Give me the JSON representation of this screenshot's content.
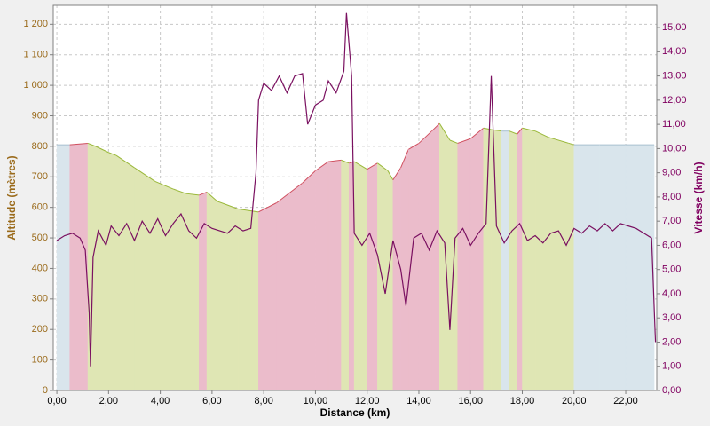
{
  "chart_data": {
    "type": "altitude-speed",
    "xlabel": "Distance (km)",
    "ylabel": "Altitude (mètres)",
    "y2label": "Vitesse (km/h)",
    "xlim": [
      -0.14,
      23.2
    ],
    "xticks": [
      {
        "value": 0,
        "label": "0,00"
      },
      {
        "value": 2,
        "label": "2,00"
      },
      {
        "value": 4,
        "label": "4,00"
      },
      {
        "value": 6,
        "label": "6,00"
      },
      {
        "value": 8,
        "label": "8,00"
      },
      {
        "value": 10,
        "label": "10,00"
      },
      {
        "value": 12,
        "label": "12,00"
      },
      {
        "value": 14,
        "label": "14,00"
      },
      {
        "value": 16,
        "label": "16,00"
      },
      {
        "value": 18,
        "label": "18,00"
      },
      {
        "value": 20,
        "label": "20,00"
      },
      {
        "value": 22,
        "label": "22,00"
      }
    ],
    "ylim": [
      0,
      1262
    ],
    "yticks": [
      0,
      100,
      200,
      300,
      400,
      500,
      600,
      700,
      800,
      900,
      {
        "value": 1000,
        "label": "1 000"
      },
      {
        "value": 1100,
        "label": "1 100"
      },
      {
        "value": 1200,
        "label": "1 200"
      }
    ],
    "y2lim": [
      0,
      15.92
    ],
    "y2ticks": [
      {
        "value": 0,
        "label": "0,00"
      },
      {
        "value": 1,
        "label": "1,00"
      },
      {
        "value": 2,
        "label": "2,00"
      },
      {
        "value": 3,
        "label": "3,00"
      },
      {
        "value": 4,
        "label": "4,00"
      },
      {
        "value": 5,
        "label": "5,00"
      },
      {
        "value": 6,
        "label": "6,00"
      },
      {
        "value": 7,
        "label": "7,00"
      },
      {
        "value": 8,
        "label": "8,00"
      },
      {
        "value": 9,
        "label": "9,00"
      },
      {
        "value": 10,
        "label": "10,00"
      },
      {
        "value": 11,
        "label": "11,00"
      },
      {
        "value": 12,
        "label": "12,00"
      },
      {
        "value": 13,
        "label": "13,00"
      },
      {
        "value": 14,
        "label": "14,00"
      },
      {
        "value": 15,
        "label": "15,00"
      }
    ],
    "grid": true,
    "slope_colors": {
      "up": "#ebbccb",
      "down": "#dfe6b4",
      "flat": "#d9e5ec",
      "up_line": "#d05060",
      "down_line": "#9ab83a",
      "flat_line": "#a8c0d0"
    },
    "series": [
      {
        "kind": "area",
        "axis": "y",
        "x": [
          0,
          0.5,
          1.2,
          1.5,
          2,
          2.3,
          3,
          3.8,
          4.5,
          5,
          5.5,
          5.8,
          6.2,
          7,
          7.8,
          8.5,
          9.5,
          10,
          10.5,
          11,
          11.3,
          11.5,
          12,
          12.4,
          12.8,
          13,
          13.3,
          13.6,
          14,
          14.5,
          14.8,
          15.2,
          15.5,
          16,
          16.5,
          16.8,
          17.2,
          17.5,
          17.8,
          18,
          18.5,
          19,
          19.8,
          20,
          21,
          22,
          23.1
        ],
        "values": [
          805,
          805,
          810,
          800,
          780,
          770,
          730,
          685,
          660,
          645,
          640,
          650,
          620,
          595,
          585,
          615,
          680,
          720,
          750,
          755,
          745,
          750,
          725,
          745,
          720,
          690,
          730,
          790,
          810,
          850,
          875,
          820,
          810,
          825,
          860,
          855,
          850,
          850,
          840,
          860,
          850,
          830,
          810,
          805,
          805,
          805,
          805
        ]
      },
      {
        "kind": "line",
        "axis": "y2",
        "color": "#7a1060",
        "x": [
          0,
          0.3,
          0.6,
          0.9,
          1.1,
          1.25,
          1.3,
          1.4,
          1.6,
          1.9,
          2.1,
          2.4,
          2.7,
          3.0,
          3.3,
          3.6,
          3.9,
          4.2,
          4.5,
          4.8,
          5.1,
          5.4,
          5.7,
          6.0,
          6.3,
          6.6,
          6.9,
          7.2,
          7.5,
          7.7,
          7.8,
          8.0,
          8.3,
          8.6,
          8.9,
          9.2,
          9.5,
          9.7,
          10.0,
          10.3,
          10.5,
          10.8,
          11.1,
          11.2,
          11.4,
          11.5,
          11.8,
          12.1,
          12.4,
          12.7,
          13.0,
          13.3,
          13.5,
          13.8,
          14.1,
          14.4,
          14.7,
          15.0,
          15.2,
          15.4,
          15.7,
          16.0,
          16.3,
          16.6,
          16.8,
          17.0,
          17.3,
          17.6,
          17.9,
          18.2,
          18.5,
          18.8,
          19.1,
          19.4,
          19.7,
          20.0,
          20.3,
          20.6,
          20.9,
          21.2,
          21.5,
          21.8,
          22.1,
          22.4,
          22.7,
          23.0,
          23.15
        ],
        "values": [
          6.2,
          6.4,
          6.5,
          6.3,
          5.8,
          3.2,
          1.0,
          5.5,
          6.6,
          6.0,
          6.8,
          6.4,
          6.9,
          6.2,
          7.0,
          6.5,
          7.1,
          6.4,
          6.9,
          7.3,
          6.6,
          6.3,
          6.9,
          6.7,
          6.6,
          6.5,
          6.8,
          6.6,
          6.7,
          9.0,
          12.0,
          12.7,
          12.4,
          13.0,
          12.3,
          13.0,
          13.1,
          11.0,
          11.8,
          12.0,
          12.8,
          12.3,
          13.2,
          15.6,
          13.0,
          6.5,
          6.0,
          6.5,
          5.6,
          4.0,
          6.2,
          5.0,
          3.5,
          6.3,
          6.5,
          5.8,
          6.6,
          6.1,
          2.5,
          6.3,
          6.7,
          6.0,
          6.5,
          6.9,
          13.0,
          6.8,
          6.1,
          6.6,
          6.9,
          6.2,
          6.4,
          6.1,
          6.5,
          6.6,
          6.0,
          6.7,
          6.5,
          6.8,
          6.6,
          6.9,
          6.6,
          6.9,
          6.8,
          6.7,
          6.5,
          6.3,
          2.0
        ]
      }
    ]
  }
}
